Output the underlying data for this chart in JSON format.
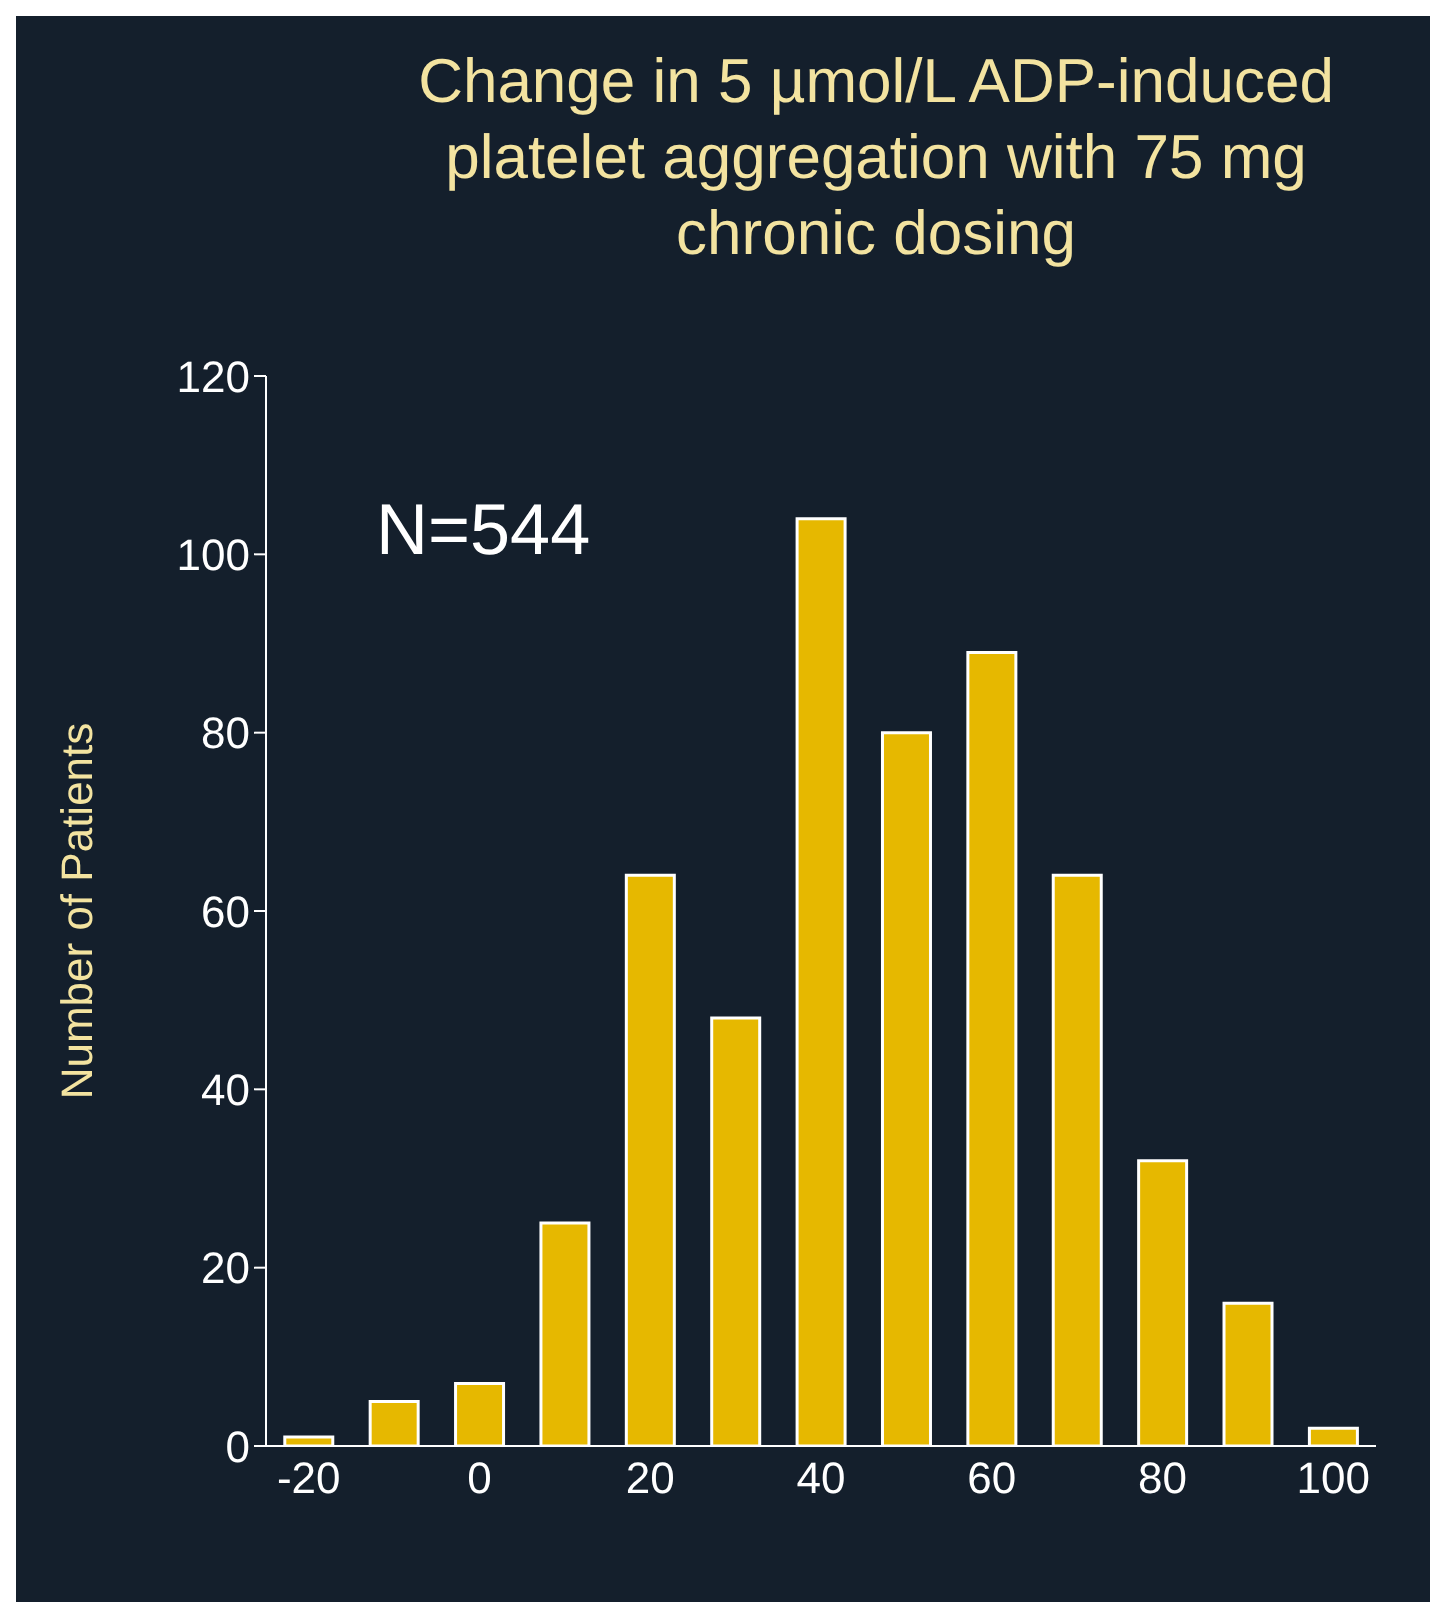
{
  "chart_data": {
    "type": "bar",
    "title": "Change in 5 µmol/L ADP-induced platelet aggregation with 75 mg chronic dosing",
    "ylabel": "Number of Patients",
    "annotations": [
      "N=544"
    ],
    "categories": [
      "-20",
      null,
      "0",
      null,
      "20",
      null,
      "40",
      null,
      "60",
      null,
      "80",
      null,
      "100"
    ],
    "values": [
      1,
      5,
      7,
      25,
      64,
      48,
      104,
      80,
      89,
      64,
      32,
      16,
      2
    ],
    "color": "#e6b800",
    "ylim": [
      0,
      120
    ],
    "yticks": [
      0,
      20,
      40,
      60,
      80,
      100,
      120
    ],
    "grid": false
  }
}
